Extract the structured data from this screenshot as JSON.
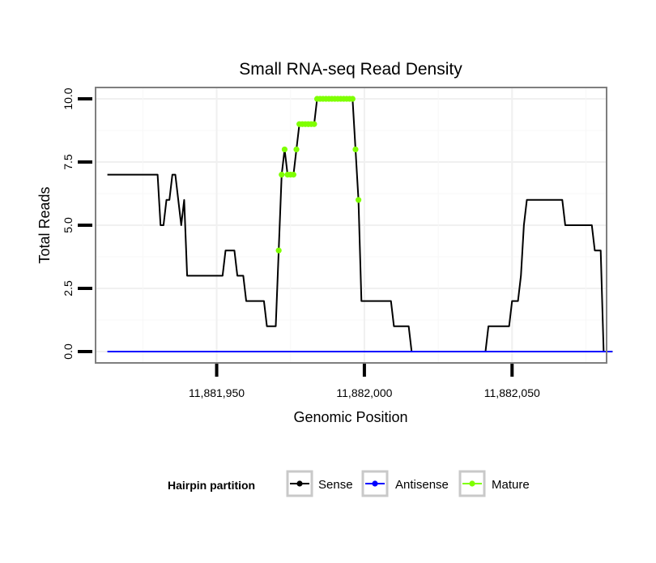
{
  "chart_data": {
    "type": "line",
    "title": "Small RNA-seq Read Density",
    "xlabel": "Genomic Position",
    "ylabel": "Total Reads",
    "xlim": [
      11881909,
      11882082
    ],
    "ylim": [
      -0.45,
      10.45
    ],
    "x_ticks": [
      11881950,
      11882000,
      11882050
    ],
    "x_tick_labels": [
      "11,881,950",
      "11,882,000",
      "11,882,050"
    ],
    "y_ticks": [
      0,
      2.5,
      5,
      7.5,
      10
    ],
    "y_tick_labels": [
      "0.0",
      "2.5",
      "5.0",
      "7.5",
      "10.0"
    ],
    "grid": true,
    "legend": {
      "title": "Hairpin partition",
      "position": "bottom",
      "entries": [
        "Sense",
        "Antisense",
        "Mature"
      ]
    },
    "series": [
      {
        "name": "Sense",
        "color": "#000000",
        "style": "line",
        "points": [
          [
            11881913,
            7
          ],
          [
            11881930,
            7
          ],
          [
            11881931,
            5
          ],
          [
            11881932,
            5
          ],
          [
            11881933,
            6
          ],
          [
            11881934,
            6
          ],
          [
            11881935,
            7
          ],
          [
            11881936,
            7
          ],
          [
            11881937,
            6
          ],
          [
            11881938,
            5
          ],
          [
            11881939,
            6
          ],
          [
            11881940,
            3
          ],
          [
            11881952,
            3
          ],
          [
            11881953,
            4
          ],
          [
            11881956,
            4
          ],
          [
            11881957,
            3
          ],
          [
            11881959,
            3
          ],
          [
            11881960,
            2
          ],
          [
            11881966,
            2
          ],
          [
            11881967,
            1
          ],
          [
            11881970,
            1
          ],
          [
            11881971,
            4
          ],
          [
            11881972,
            7
          ],
          [
            11881973,
            8
          ],
          [
            11881974,
            7
          ],
          [
            11881976,
            7
          ],
          [
            11881977,
            8
          ],
          [
            11881978,
            9
          ],
          [
            11881983,
            9
          ],
          [
            11881984,
            10
          ],
          [
            11881996,
            10
          ],
          [
            11881997,
            8
          ],
          [
            11881998,
            6
          ],
          [
            11881999,
            2
          ],
          [
            11882009,
            2
          ],
          [
            11882010,
            1
          ],
          [
            11882015,
            1
          ],
          [
            11882016,
            0
          ],
          [
            11882041,
            0
          ],
          [
            11882042,
            1
          ],
          [
            11882049,
            1
          ],
          [
            11882050,
            2
          ],
          [
            11882052,
            2
          ],
          [
            11882053,
            3
          ],
          [
            11882054,
            5
          ],
          [
            11882055,
            6
          ],
          [
            11882067,
            6
          ],
          [
            11882068,
            5
          ],
          [
            11882077,
            5
          ],
          [
            11882078,
            4
          ],
          [
            11882080,
            4
          ],
          [
            11882081,
            0
          ],
          [
            11882084,
            0
          ]
        ]
      },
      {
        "name": "Antisense",
        "color": "#0000ff",
        "style": "line",
        "points": [
          [
            11881913,
            0
          ],
          [
            11882084,
            0
          ]
        ]
      },
      {
        "name": "Mature",
        "color": "#7fff00",
        "style": "points",
        "points": [
          [
            11881971,
            4
          ],
          [
            11881972,
            7
          ],
          [
            11881973,
            8
          ],
          [
            11881974,
            7
          ],
          [
            11881975,
            7
          ],
          [
            11881976,
            7
          ],
          [
            11881977,
            8
          ],
          [
            11881978,
            9
          ],
          [
            11881979,
            9
          ],
          [
            11881980,
            9
          ],
          [
            11881981,
            9
          ],
          [
            11881982,
            9
          ],
          [
            11881983,
            9
          ],
          [
            11881984,
            10
          ],
          [
            11881985,
            10
          ],
          [
            11881986,
            10
          ],
          [
            11881987,
            10
          ],
          [
            11881988,
            10
          ],
          [
            11881989,
            10
          ],
          [
            11881990,
            10
          ],
          [
            11881991,
            10
          ],
          [
            11881992,
            10
          ],
          [
            11881993,
            10
          ],
          [
            11881994,
            10
          ],
          [
            11881995,
            10
          ],
          [
            11881996,
            10
          ],
          [
            11881997,
            8
          ],
          [
            11881998,
            6
          ]
        ]
      }
    ]
  }
}
